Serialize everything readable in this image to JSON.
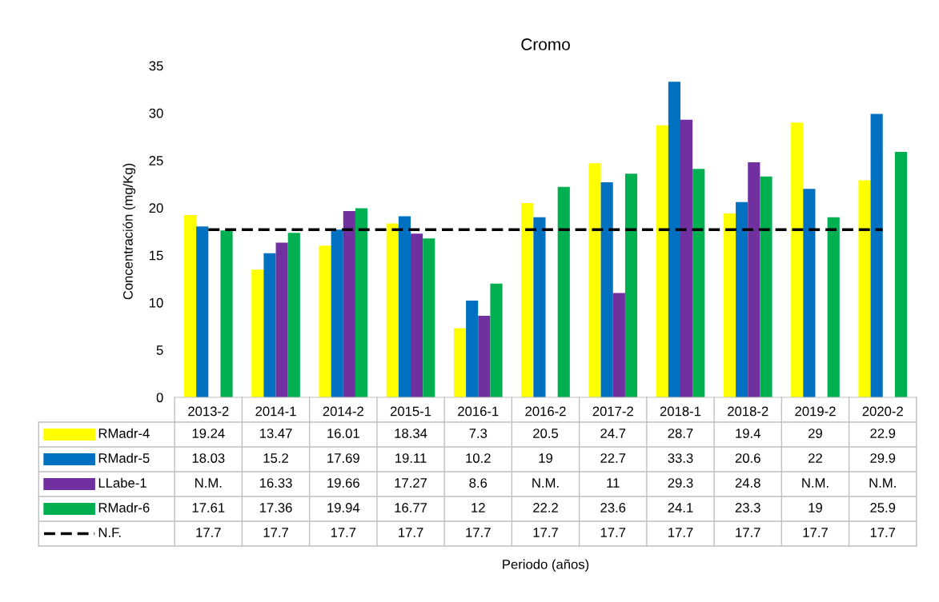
{
  "chart_data": {
    "type": "bar",
    "title": "Cromo",
    "annotations": [
      "Periodo (años)"
    ],
    "ylabel": "Concentración (mg/Kg)",
    "categories": [
      "2013-2",
      "2014-1",
      "2014-2",
      "2015-1",
      "2016-1",
      "2016-2",
      "2017-2",
      "2018-1",
      "2018-2",
      "2019-2",
      "2020-2"
    ],
    "series": [
      {
        "name": "RMadr-4",
        "color": "#ffff00",
        "values": [
          19.24,
          13.47,
          16.01,
          18.34,
          7.3,
          20.5,
          24.7,
          28.7,
          19.4,
          29,
          22.9
        ],
        "value_labels": [
          "19.24",
          "13.47",
          "16.01",
          "18.34",
          "7.3",
          "20.5",
          "24.7",
          "28.7",
          "19.4",
          "29",
          "22.9"
        ]
      },
      {
        "name": "RMadr-5",
        "color": "#0070c0",
        "values": [
          18.03,
          15.2,
          17.69,
          19.11,
          10.2,
          19,
          22.7,
          33.3,
          20.6,
          22,
          29.9
        ],
        "value_labels": [
          "18.03",
          "15.2",
          "17.69",
          "19.11",
          "10.2",
          "19",
          "22.7",
          "33.3",
          "20.6",
          "22",
          "29.9"
        ]
      },
      {
        "name": "LLabe-1",
        "color": "#7030a0",
        "values": [
          null,
          16.33,
          19.66,
          17.27,
          8.6,
          null,
          11,
          29.3,
          24.8,
          null,
          null
        ],
        "value_labels": [
          "N.M.",
          "16.33",
          "19.66",
          "17.27",
          "8.6",
          "N.M.",
          "11",
          "29.3",
          "24.8",
          "N.M.",
          "N.M."
        ]
      },
      {
        "name": "RMadr-6",
        "color": "#00b050",
        "values": [
          17.61,
          17.36,
          19.94,
          16.77,
          12,
          22.2,
          23.6,
          24.1,
          23.3,
          19,
          25.9
        ],
        "value_labels": [
          "17.61",
          "17.36",
          "19.94",
          "16.77",
          "12",
          "22.2",
          "23.6",
          "24.1",
          "23.3",
          "19",
          "25.9"
        ]
      },
      {
        "name": "N.F.",
        "type": "line",
        "line_style": "dashed",
        "color": "#000000",
        "values": [
          17.7,
          17.7,
          17.7,
          17.7,
          17.7,
          17.7,
          17.7,
          17.7,
          17.7,
          17.7,
          17.7
        ],
        "value_labels": [
          "17.7",
          "17.7",
          "17.7",
          "17.7",
          "17.7",
          "17.7",
          "17.7",
          "17.7",
          "17.7",
          "17.7",
          "17.7"
        ]
      }
    ],
    "ylim": [
      0,
      35
    ],
    "yticks": [
      0,
      5,
      10,
      15,
      20,
      25,
      30,
      35
    ],
    "grid": false,
    "legend": "bottom"
  }
}
